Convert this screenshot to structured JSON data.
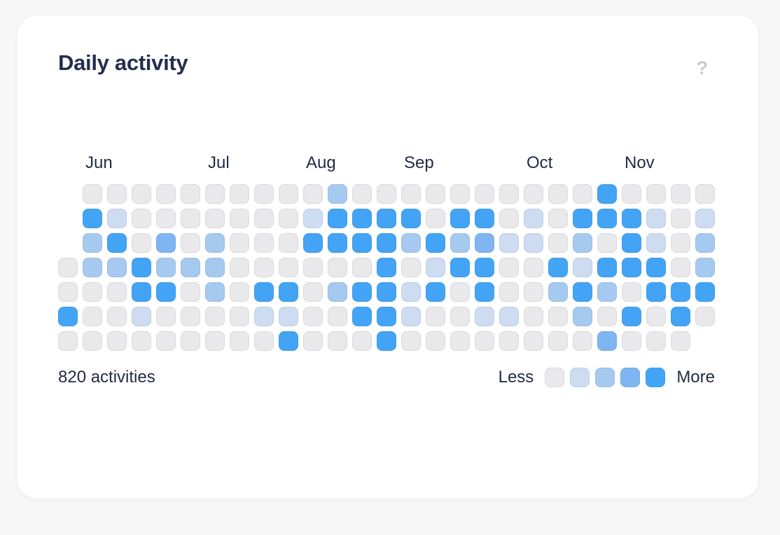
{
  "card": {
    "title": "Daily activity",
    "help_icon": "?",
    "activities_label": "820 activities",
    "legend": {
      "less_label": "Less",
      "more_label": "More"
    }
  },
  "colors": {
    "background": "#f7f7f8",
    "card": "#ffffff",
    "text_dark": "#222b45",
    "help_icon": "#c9cacd",
    "levels": [
      "#e9e9eb",
      "#cddcf0",
      "#a6c9f0",
      "#7eb5f2",
      "#43a4f5"
    ]
  },
  "chart_data": {
    "type": "heatmap",
    "title": "Daily activity",
    "total_label": "820 activities",
    "rows": 7,
    "columns": 27,
    "level_count": 5,
    "legend": [
      "Less",
      "More"
    ],
    "months": [
      {
        "label": "Jun",
        "week_index": 1
      },
      {
        "label": "Jul",
        "week_index": 6
      },
      {
        "label": "Aug",
        "week_index": 10
      },
      {
        "label": "Sep",
        "week_index": 14
      },
      {
        "label": "Oct",
        "week_index": 19
      },
      {
        "label": "Nov",
        "week_index": 23
      }
    ],
    "cells_by_column": [
      [
        null,
        null,
        null,
        0,
        0,
        4,
        0
      ],
      [
        0,
        4,
        2,
        2,
        0,
        0,
        0
      ],
      [
        0,
        1,
        4,
        2,
        0,
        0,
        0
      ],
      [
        0,
        0,
        0,
        4,
        4,
        1,
        0
      ],
      [
        0,
        0,
        3,
        2,
        4,
        0,
        0
      ],
      [
        0,
        0,
        0,
        2,
        0,
        0,
        0
      ],
      [
        0,
        0,
        2,
        2,
        2,
        0,
        0
      ],
      [
        0,
        0,
        0,
        0,
        0,
        0,
        0
      ],
      [
        0,
        0,
        0,
        0,
        4,
        1,
        0
      ],
      [
        0,
        0,
        0,
        0,
        4,
        1,
        4
      ],
      [
        0,
        1,
        4,
        0,
        0,
        0,
        0
      ],
      [
        2,
        4,
        4,
        0,
        2,
        0,
        0
      ],
      [
        0,
        4,
        4,
        0,
        4,
        4,
        0
      ],
      [
        0,
        4,
        4,
        4,
        4,
        4,
        4
      ],
      [
        0,
        4,
        2,
        0,
        1,
        1,
        0
      ],
      [
        0,
        0,
        4,
        1,
        4,
        0,
        0
      ],
      [
        0,
        4,
        2,
        4,
        0,
        0,
        0
      ],
      [
        0,
        4,
        3,
        4,
        4,
        1,
        0
      ],
      [
        0,
        0,
        1,
        0,
        0,
        1,
        0
      ],
      [
        0,
        1,
        1,
        0,
        0,
        0,
        0
      ],
      [
        0,
        0,
        0,
        4,
        2,
        0,
        0
      ],
      [
        0,
        4,
        2,
        1,
        4,
        2,
        0
      ],
      [
        4,
        4,
        0,
        4,
        2,
        0,
        3
      ],
      [
        0,
        4,
        4,
        4,
        0,
        4,
        0
      ],
      [
        0,
        1,
        1,
        4,
        4,
        0,
        0
      ],
      [
        0,
        0,
        0,
        0,
        4,
        4,
        0
      ],
      [
        0,
        1,
        2,
        2,
        4,
        0,
        null
      ]
    ]
  }
}
